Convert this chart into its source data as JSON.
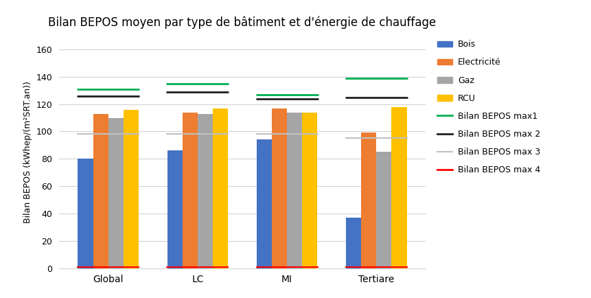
{
  "title": "Bilan BEPOS moyen par type de bâtiment et d'énergie de chauffage",
  "ylabel": "Bilan BEPOS (kWhep/(m²SRT.an))",
  "categories": [
    "Global",
    "LC",
    "MI",
    "Tertiare"
  ],
  "series": {
    "Bois": [
      80,
      86,
      94,
      37
    ],
    "Electricite": [
      113,
      114,
      117,
      99
    ],
    "Gaz": [
      110,
      113,
      114,
      85
    ],
    "RCU": [
      116,
      117,
      114,
      118
    ]
  },
  "series_labels": [
    "Bois",
    "Electricité",
    "Gaz",
    "RCU"
  ],
  "bar_colors": {
    "Bois": "#4472C4",
    "Electricite": "#ED7D31",
    "Gaz": "#A5A5A5",
    "RCU": "#FFC000"
  },
  "hlines": {
    "Global": {
      "max1": 131,
      "max2": 126,
      "max3": 98,
      "max4": 1
    },
    "LC": {
      "max1": 135,
      "max2": 129,
      "max3": 98,
      "max4": 1
    },
    "MI": {
      "max1": 127,
      "max2": 124,
      "max3": 98,
      "max4": 1
    },
    "Tertiare": {
      "max1": 139,
      "max2": 125,
      "max3": 95,
      "max4": 1
    }
  },
  "hline_colors": {
    "max1": "#00B050",
    "max2": "#1F1F1F",
    "max3": "#C0C0C0",
    "max4": "#FF0000"
  },
  "legend_bar_labels": [
    "Bois",
    "Electricité",
    "Gaz",
    "RCU"
  ],
  "legend_line_labels": [
    "Bilan BEPOS max1",
    "Bilan BEPOS max 2",
    "Bilan BEPOS max 3",
    "Bilan BEPOS max 4"
  ],
  "ylim": [
    0,
    170
  ],
  "yticks": [
    0,
    20,
    40,
    60,
    80,
    100,
    120,
    140,
    160
  ],
  "bar_width": 0.17,
  "figsize": [
    8.61,
    4.34
  ],
  "dpi": 100
}
